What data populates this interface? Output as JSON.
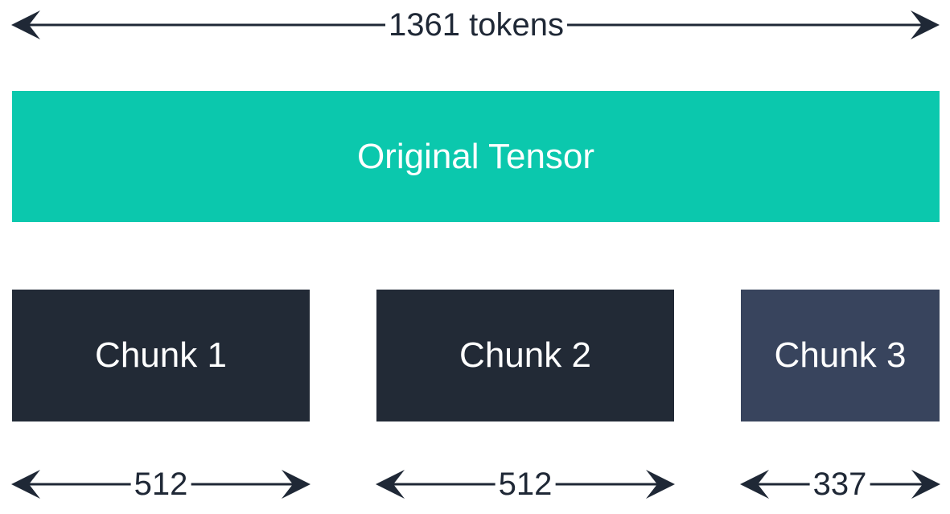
{
  "total": {
    "label": "1361 tokens",
    "tokens": 1361
  },
  "original_tensor": {
    "label": "Original Tensor",
    "color": "#0bc8ad"
  },
  "chunks": [
    {
      "label": "Chunk 1",
      "size_label": "512",
      "tokens": 512,
      "color": "#222a36"
    },
    {
      "label": "Chunk 2",
      "size_label": "512",
      "tokens": 512,
      "color": "#222a36"
    },
    {
      "label": "Chunk 3",
      "size_label": "337",
      "tokens": 337,
      "color": "#38445d"
    }
  ],
  "colors": {
    "arrow": "#1f2836",
    "text_light": "#ffffff"
  }
}
